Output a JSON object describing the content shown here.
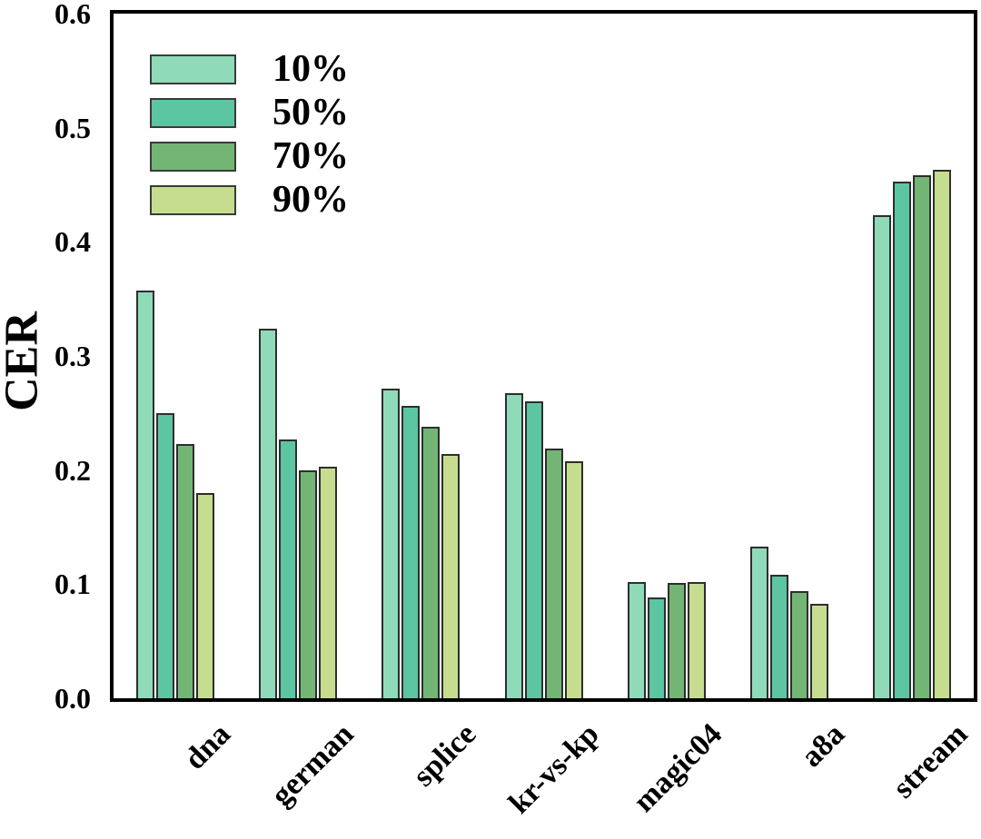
{
  "chart": {
    "background_color": "#ffffff",
    "frame_color": "#000000",
    "bar_border_color": "#2e2e2e",
    "text_color": "#000000"
  },
  "chart_data": {
    "type": "bar",
    "title": "",
    "xlabel": "",
    "ylabel": "CER",
    "ylim": [
      0,
      0.6
    ],
    "yticks": [
      "0.0",
      "0.1",
      "0.2",
      "0.3",
      "0.4",
      "0.5",
      "0.6"
    ],
    "grid": false,
    "legend_position": "upper-left",
    "categories": [
      "dna",
      "german",
      "splice",
      "kr-vs-kp",
      "magic04",
      "a8a",
      "stream"
    ],
    "series": [
      {
        "name": "10%",
        "color": "#8fdab8",
        "values": [
          0.357,
          0.324,
          0.271,
          0.267,
          0.102,
          0.133,
          0.423
        ]
      },
      {
        "name": "50%",
        "color": "#5cc5a2",
        "values": [
          0.25,
          0.227,
          0.256,
          0.26,
          0.088,
          0.108,
          0.453
        ]
      },
      {
        "name": "70%",
        "color": "#73b575",
        "values": [
          0.223,
          0.2,
          0.238,
          0.219,
          0.101,
          0.094,
          0.458
        ]
      },
      {
        "name": "90%",
        "color": "#c6dd90",
        "values": [
          0.18,
          0.203,
          0.214,
          0.208,
          0.102,
          0.083,
          0.463
        ]
      }
    ]
  }
}
